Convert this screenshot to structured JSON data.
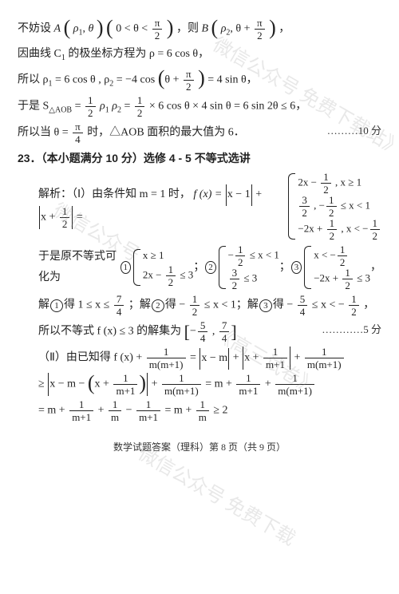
{
  "l1a": "不妨设 ",
  "l1b": "，则 ",
  "l1c": "，",
  "A": "A",
  "B": "B",
  "rho1": "ρ",
  "sub1": "1",
  "sub2": "2",
  "theta": "θ",
  "pi": "π",
  "t2": "2",
  "zero_lt": "0 < θ <",
  "thetaPlus": "θ +",
  "l2": "因曲线 C",
  "l2b": " 的极坐标方程为 ρ = 6 cos θ，",
  "l3a": "所以 ρ",
  "l3_eq1": " = 6 cos θ , ρ",
  "l3_mid": " = −4 cos",
  "l3_end": " = 4 sin θ，",
  "l4a": "于是 S",
  "l4_sub": "△AOB",
  "l4_eq": " =",
  "half_n": "1",
  "half_d": "2",
  "l4_mid": "ρ",
  "l4_mid2": "ρ",
  "l4_eq2": " =",
  "l4_expr": "× 6 cos θ × 4 sin θ = 6 sin 2θ ≤ 6，",
  "l5a": "所以当 θ =",
  "pi4_n": "π",
  "pi4_d": "4",
  "l5b": " 时，△AOB 面积的最大值为 6．",
  "score1": "………10 分",
  "q23a": "23．（本小题满分 10 分）选修 4 - 5 不等式选讲",
  "l6a": "解析：（Ⅰ）由条件知 m = 1 时，",
  "l6_f": "f (x) = ",
  "xm1": "x − 1",
  "plus": " + ",
  "xhalf": "x + ",
  "eqsign": " = ",
  "br1": "2x − ",
  "br1b": " , x ≥ 1",
  "br2_n": "3",
  "br2_d": "2",
  "br2a": " , −",
  "br2b": " ≤ x < 1",
  "br3": "−2x + ",
  "br3b": " , x < −",
  "l7a": "于是原不等式可化为",
  "c1": "1",
  "c2": "2",
  "c3": "3",
  "g1a": "x ≥ 1",
  "g1b": "2x − ",
  "g1c": " ≤ 3",
  "g2a": "−",
  "g2b": " ≤ x < 1",
  "g2c_n": "3",
  "g2c_d": "2",
  "g2c": " ≤ 3",
  "g3a": "x < −",
  "g3b": "−2x + ",
  "g3c": " ≤ 3",
  "l8a": "解",
  "l8b": "得 1 ≤ x ≤ ",
  "s74n": "7",
  "s74d": "4",
  "l8c": "；解",
  "l8d": "得 −",
  "l8e": " ≤ x < 1；解",
  "l8f": "得 −",
  "s54n": "5",
  "s54d": "4",
  "l8g": " ≤ x < −",
  "l8h": "，",
  "l9a": "所以不等式 f (x) ≤ 3 的解集为 ",
  "comma": " , ",
  "score2": "…………5 分",
  "l10a": "（Ⅱ）由已知得 f (x) + ",
  "mm1_top": "1",
  "mm1_bot": "m(m+1)",
  "l10_eq": " = ",
  "xm": "x − m",
  "xplus": "x + ",
  "m1_top": "1",
  "m1_bot": "m+1",
  "l10_plus": " + ",
  "l11a": "≥ ",
  "l11_inner": "x − m − ",
  "l11_paren": "x + ",
  "l11_eq": " = m + ",
  "l12a": "= m + ",
  "l12b": " + ",
  "minus": " − ",
  "l12_eq": " = m + ",
  "one_m": "1",
  "one_m_d": "m",
  "l12_end": " ≥ 2",
  "footer": "数学试题答案（理科）第 8 页（共 9 页）",
  "wm_a": "微信公众号 免费下载站》",
  "wm_b": "微信公众号",
  "wm_c": "《高三试卷》",
  "wm_d": "微信公众号 免费下载"
}
